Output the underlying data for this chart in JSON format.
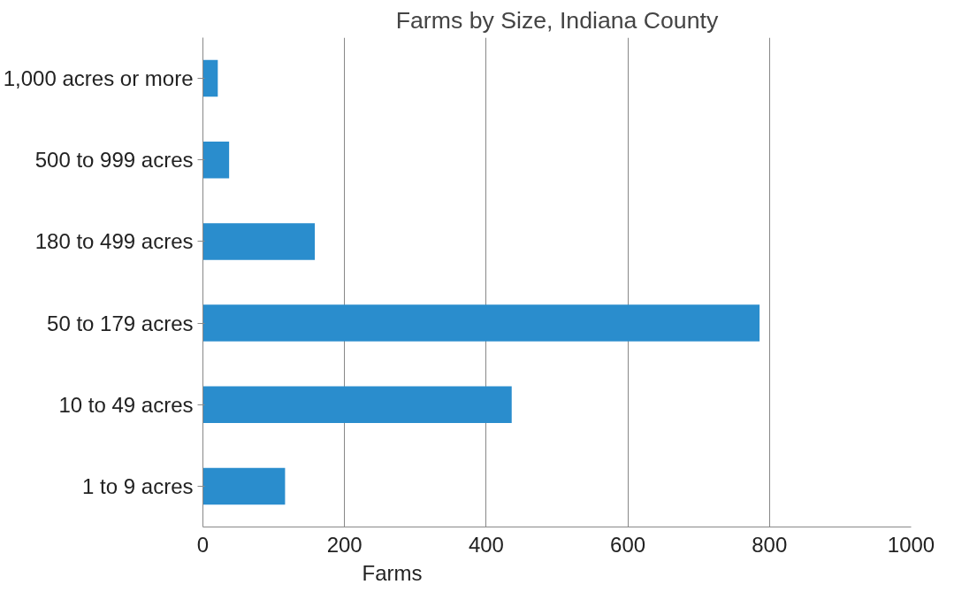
{
  "chart_data": {
    "type": "bar",
    "orientation": "horizontal",
    "title": "Farms by Size, Indiana County",
    "xlabel": "Farms",
    "categories": [
      "1,000 acres or more",
      "500 to 999 acres",
      "180 to 499 acres",
      "50 to 179 acres",
      "10 to 49 acres",
      "1 to 9 acres"
    ],
    "values": [
      21,
      37,
      158,
      786,
      436,
      116
    ],
    "color": "#2a8dcd",
    "xlim": [
      0,
      1000
    ],
    "xticks": [
      0,
      200,
      400,
      600,
      800,
      1000
    ],
    "grid": "x"
  }
}
